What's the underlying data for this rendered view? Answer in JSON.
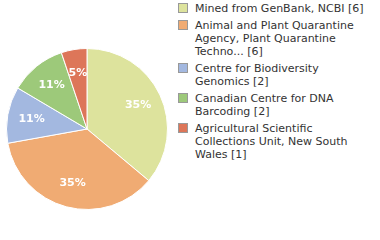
{
  "chart_data": {
    "type": "pie",
    "categories": [
      "Mined from GenBank, NCBI [6]",
      "Animal and Plant Quarantine Agency, Plant Quarantine Techno... [6]",
      "Centre for Biodiversity Genomics [2]",
      "Canadian Centre for DNA Barcoding [2]",
      "Agricultural Scientific Collections Unit, New South Wales [1]"
    ],
    "values": [
      35,
      35,
      11,
      11,
      5
    ],
    "value_labels": [
      "35%",
      "35%",
      "11%",
      "11%",
      "5%"
    ],
    "colors": [
      "#dde39d",
      "#f0ab73",
      "#a3b8e0",
      "#9dc97a",
      "#dd7659"
    ],
    "data_labels": true,
    "legend": "right"
  }
}
